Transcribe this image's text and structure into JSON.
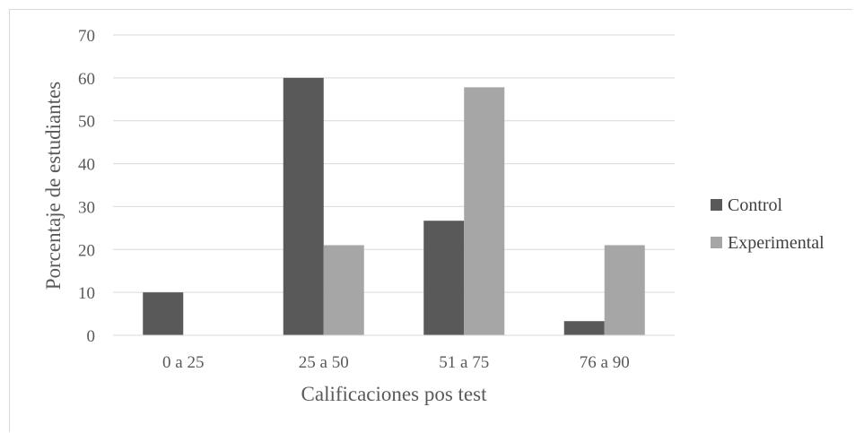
{
  "chart_data": {
    "type": "bar",
    "categories": [
      "0 a 25",
      "25 a 50",
      "51 a 75",
      "76 a 90"
    ],
    "series": [
      {
        "name": "Control",
        "values": [
          10,
          60,
          26.7,
          3.3
        ],
        "color": "#595959"
      },
      {
        "name": "Experimental",
        "values": [
          0,
          21,
          57.8,
          21
        ],
        "color": "#a6a6a6"
      }
    ],
    "xlabel": "Calificaciones pos test",
    "ylabel": "Porcentaje de estudiantes",
    "ylim": [
      0,
      70
    ],
    "yticks": [
      "0",
      "10",
      "20",
      "30",
      "40",
      "50",
      "60",
      "70"
    ],
    "grid": true,
    "legend_position": "right"
  }
}
